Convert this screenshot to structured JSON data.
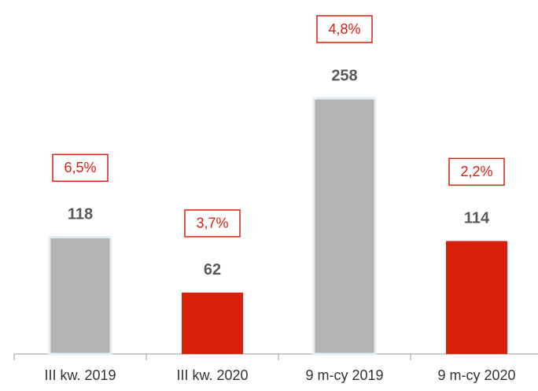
{
  "chart_data": {
    "type": "bar",
    "categories": [
      "III kw. 2019",
      "III kw. 2020",
      "9 m-cy 2019",
      "9 m-cy 2020"
    ],
    "values": [
      118,
      62,
      258,
      114
    ],
    "colors": [
      "#b3b3b3",
      "#d9200b",
      "#b3b3b3",
      "#d9200b"
    ],
    "annotations": [
      "6,5%",
      "3,7%",
      "4,8%",
      "2,2%"
    ]
  }
}
